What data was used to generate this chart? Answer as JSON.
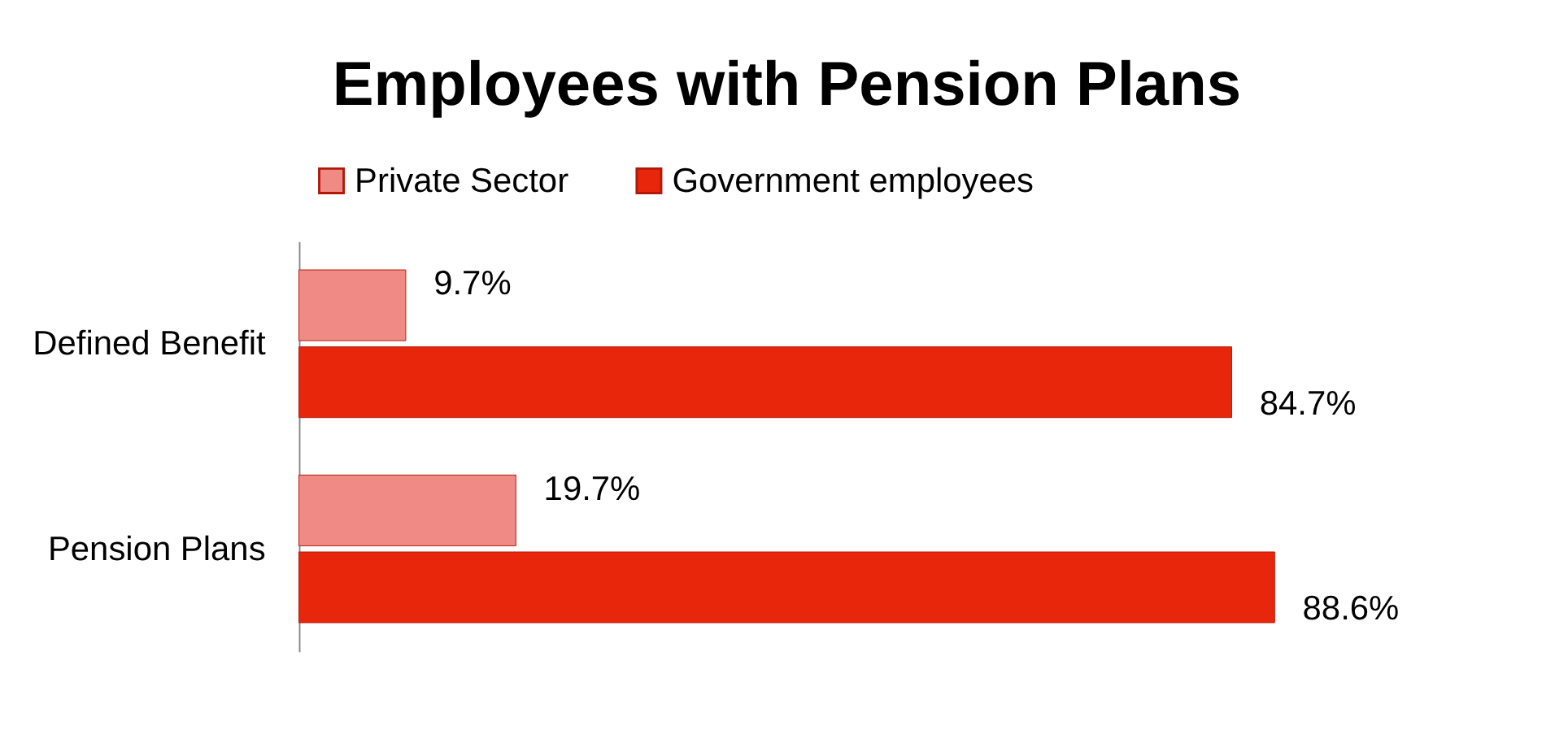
{
  "chart_data": {
    "type": "bar",
    "orientation": "horizontal",
    "title": "Employees with Pension Plans",
    "categories": [
      "Defined Benefit",
      "Pension Plans"
    ],
    "series": [
      {
        "name": "Private Sector",
        "color": "#f08a84",
        "values": [
          9.7,
          19.7
        ],
        "value_labels": [
          "9.7%",
          "19.7%"
        ]
      },
      {
        "name": "Government employees",
        "color": "#e8260c",
        "values": [
          84.7,
          88.6
        ],
        "value_labels": [
          "84.7%",
          "88.6%"
        ]
      }
    ],
    "legend": "top",
    "grid": false
  }
}
